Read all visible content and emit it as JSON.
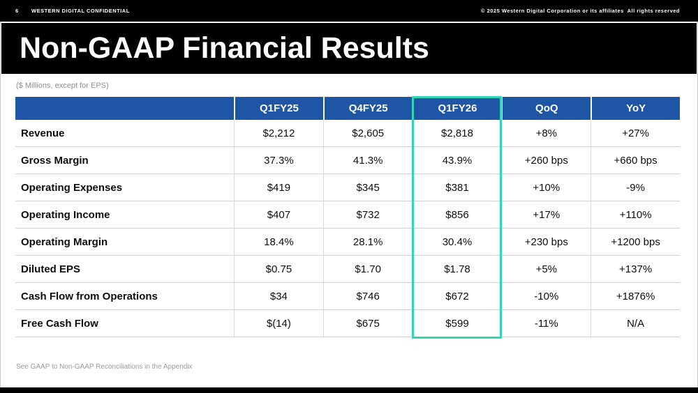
{
  "meta_bar": {
    "page_number": "6",
    "confidential_label": "WESTERN DIGITAL CONFIDENTIAL",
    "copyright": "© 2025 Western Digital Corporation or its affiliates  All rights reserved"
  },
  "title": "Non-GAAP Financial Results",
  "subtitle": "($ Millions, except for EPS)",
  "table": {
    "columns": [
      "Q1FY25",
      "Q4FY25",
      "Q1FY26",
      "QoQ",
      "YoY"
    ],
    "highlighted_column": "Q1FY26",
    "rows": [
      {
        "label": "Revenue",
        "values": [
          "$2,212",
          "$2,605",
          "$2,818",
          "+8%",
          "+27%"
        ]
      },
      {
        "label": "Gross Margin",
        "values": [
          "37.3%",
          "41.3%",
          "43.9%",
          "+260 bps",
          "+660 bps"
        ]
      },
      {
        "label": "Operating Expenses",
        "values": [
          "$419",
          "$345",
          "$381",
          "+10%",
          "-9%"
        ]
      },
      {
        "label": "Operating Income",
        "values": [
          "$407",
          "$732",
          "$856",
          "+17%",
          "+110%"
        ]
      },
      {
        "label": "Operating Margin",
        "values": [
          "18.4%",
          "28.1%",
          "30.4%",
          "+230 bps",
          "+1200 bps"
        ]
      },
      {
        "label": "Diluted EPS",
        "values": [
          "$0.75",
          "$1.70",
          "$1.78",
          "+5%",
          "+137%"
        ]
      },
      {
        "label": "Cash Flow from Operations",
        "values": [
          "$34",
          "$746",
          "$672",
          "-10%",
          "+1876%"
        ]
      },
      {
        "label": "Free Cash Flow",
        "values": [
          "$(14)",
          "$675",
          "$599",
          "-11%",
          "N/A"
        ]
      }
    ]
  },
  "footnote": "See GAAP to Non-GAAP Reconciliations in the Appendix",
  "colors": {
    "header_blue": "#1f55a5",
    "highlight_teal": "#2fd5b7",
    "band_black": "#000000"
  }
}
